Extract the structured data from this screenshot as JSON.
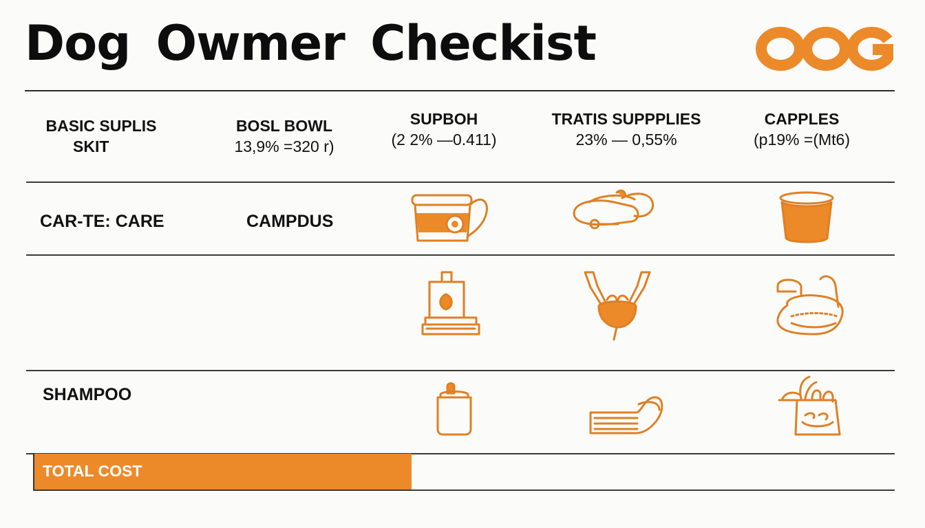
{
  "title": "Dog Owmer Checkist",
  "logo": {
    "text": "OOG",
    "color": "#ec8a2a"
  },
  "columns": [
    {
      "label": "BASIC SUPLIS",
      "sub": "SKIT"
    },
    {
      "label": "BOSL BOWL",
      "sub": "13,9% =320 r)"
    },
    {
      "label": "SUPBOH",
      "sub": "(2 2% —0.411)"
    },
    {
      "label": "TRATIS SUPPPLIES",
      "sub": "23% — 0,55%"
    },
    {
      "label": "CAPPLES",
      "sub": "(p19% =(Mt6)"
    }
  ],
  "rows": [
    {
      "label1": "CAR-TE: CARE",
      "label2": "CAMPDUS",
      "icons": [
        "bowl-bucket-icon",
        "leash-collar-icon",
        "food-cup-icon"
      ]
    },
    {
      "label1": "",
      "label2": "",
      "icons": [
        "food-box-icon",
        "harness-icon",
        "dog-bed-icon"
      ]
    },
    {
      "label1": "SHAMPOO",
      "label2": "",
      "icons": [
        "shampoo-bottle-icon",
        "pet-bed-icon",
        "treat-bag-icon"
      ]
    }
  ],
  "total": {
    "label": "TOTAL COST"
  },
  "colors": {
    "accent": "#ec8a2a",
    "rule": "#2a2a2a",
    "text": "#111111"
  }
}
